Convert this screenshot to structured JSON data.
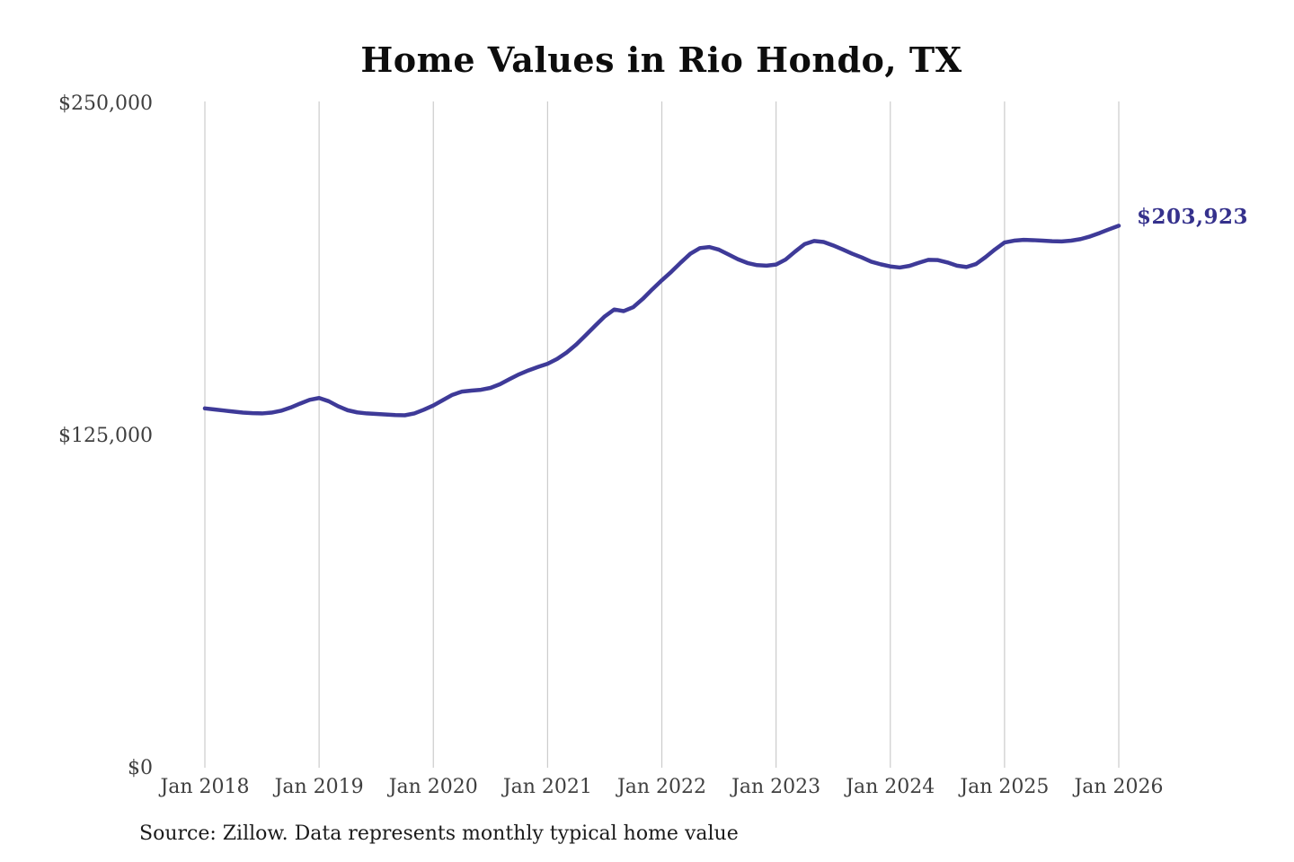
{
  "chart": {
    "title": "Home Values in Rio Hondo, TX",
    "end_label": "$203,923",
    "source_note": "Source: Zillow. Data represents monthly typical home value"
  },
  "styles": {
    "background": "#ffffff",
    "line_color": "#3e3a98",
    "end_label_color": "#35318c",
    "grid_color": "#cccccc",
    "tick_label_color": "#3f3f3f",
    "title_color": "#0d0d0d",
    "source_color": "#1b1b1b"
  },
  "chart_data": {
    "type": "line",
    "title": "Home Values in Rio Hondo, TX",
    "xlabel": "",
    "ylabel": "",
    "x_unit": "month",
    "x_range": [
      "Jan 2018",
      "Jan 2026"
    ],
    "x_tick_labels": [
      "Jan 2018",
      "Jan 2019",
      "Jan 2020",
      "Jan 2021",
      "Jan 2022",
      "Jan 2023",
      "Jan 2024",
      "Jan 2025",
      "Jan 2026"
    ],
    "y_ticks": [
      0,
      125000,
      250000
    ],
    "y_tick_labels": [
      "$0",
      "$125,000",
      "$250,000"
    ],
    "ylim": [
      0,
      250000
    ],
    "grid": "vertical yearly gridlines only",
    "legend": "none",
    "annotation": {
      "text": "$203,923",
      "value": 203923,
      "position": "end-of-line"
    },
    "series": [
      {
        "name": "Monthly typical home value",
        "start": "2018-01",
        "interval_months": 1,
        "values": [
          135200,
          134800,
          134400,
          134000,
          133600,
          133400,
          133300,
          133600,
          134300,
          135500,
          137000,
          138400,
          139100,
          137900,
          136000,
          134500,
          133700,
          133300,
          133100,
          132900,
          132700,
          132600,
          133300,
          134700,
          136300,
          138300,
          140300,
          141500,
          141900,
          142200,
          142900,
          144300,
          146200,
          148000,
          149500,
          150800,
          152000,
          153800,
          156200,
          159200,
          162700,
          166300,
          169800,
          172400,
          171800,
          173300,
          176400,
          180000,
          183400,
          186600,
          190100,
          193400,
          195500,
          195900,
          194900,
          193100,
          191300,
          189900,
          189100,
          188900,
          189300,
          191200,
          194200,
          197000,
          198200,
          197800,
          196500,
          195000,
          193400,
          192000,
          190400,
          189400,
          188600,
          188200,
          188800,
          190000,
          191100,
          191000,
          190100,
          188900,
          188400,
          189500,
          192100,
          195000,
          197600,
          198300,
          198600,
          198500,
          198300,
          198100,
          198000,
          198300,
          198900,
          199900,
          201200,
          202600,
          203923
        ]
      }
    ]
  }
}
